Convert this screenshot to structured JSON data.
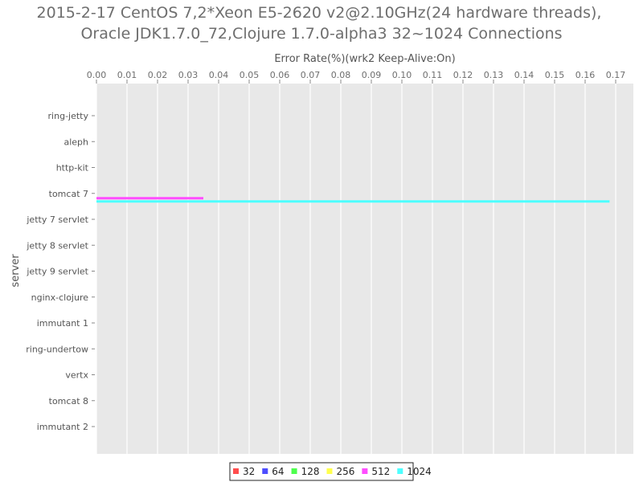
{
  "chart_data": {
    "type": "bar",
    "orientation": "horizontal",
    "title_lines": [
      "2015-2-17 CentOS 7,2*Xeon E5-2620 v2@2.10GHz(24 hardware threads),",
      "Oracle JDK1.7.0_72,Clojure 1.7.0-alpha3 32~1024 Connections"
    ],
    "xlabel": "Error Rate(%)(wrk2 Keep-Alive:On)",
    "ylabel": "server",
    "xlim": [
      0,
      0.175
    ],
    "xticks": [
      "0.00",
      "0.01",
      "0.02",
      "0.03",
      "0.04",
      "0.05",
      "0.06",
      "0.07",
      "0.08",
      "0.09",
      "0.10",
      "0.11",
      "0.12",
      "0.13",
      "0.14",
      "0.15",
      "0.16",
      "0.17"
    ],
    "x_axis_position": "top",
    "grid": true,
    "legend_position": "bottom",
    "categories": [
      "ring-jetty",
      "aleph",
      "http-kit",
      "tomcat 7",
      "jetty 7 servlet",
      "jetty 8 servlet",
      "jetty 9 servlet",
      "nginx-clojure",
      "immutant 1",
      "ring-undertow",
      "vertx",
      "tomcat 8",
      "immutant 2"
    ],
    "series": [
      {
        "name": "32",
        "color": "#ff4d4d",
        "values": [
          0,
          0,
          0,
          0,
          0,
          0,
          0,
          0,
          0,
          0,
          0,
          0,
          0
        ]
      },
      {
        "name": "64",
        "color": "#4d4dff",
        "values": [
          0,
          0,
          0,
          0,
          0,
          0,
          0,
          0,
          0,
          0,
          0,
          0,
          0
        ]
      },
      {
        "name": "128",
        "color": "#4dff4d",
        "values": [
          0,
          0,
          0,
          0,
          0,
          0,
          0,
          0,
          0,
          0,
          0,
          0,
          0
        ]
      },
      {
        "name": "256",
        "color": "#ffff4d",
        "values": [
          0,
          0,
          0,
          0,
          0,
          0,
          0,
          0,
          0,
          0,
          0,
          0,
          0
        ]
      },
      {
        "name": "512",
        "color": "#ff4dff",
        "values": [
          0,
          0,
          0,
          0.035,
          0,
          0,
          0,
          0,
          0,
          0,
          0,
          0,
          0
        ]
      },
      {
        "name": "1024",
        "color": "#4dffff",
        "values": [
          0,
          0,
          0,
          0.168,
          0,
          0,
          0,
          0,
          0,
          0,
          0,
          0,
          0
        ]
      }
    ]
  }
}
